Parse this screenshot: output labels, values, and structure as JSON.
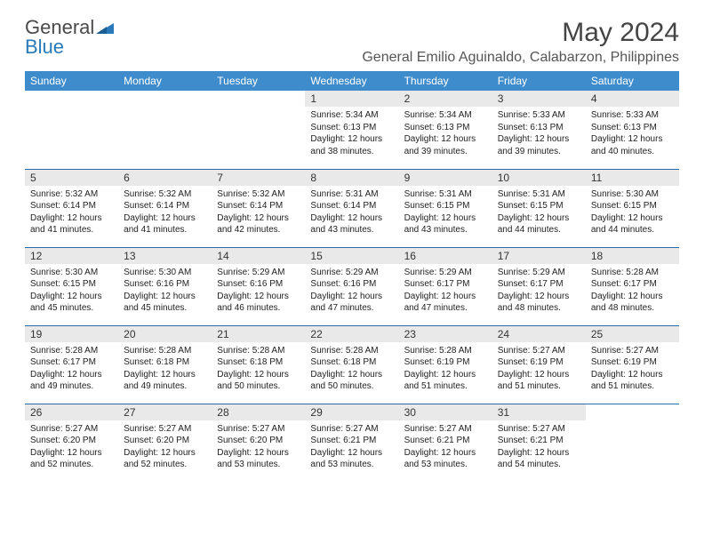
{
  "brand": {
    "part1": "General",
    "part2": "Blue"
  },
  "title": "May 2024",
  "location": "General Emilio Aguinaldo, Calabarzon, Philippines",
  "colors": {
    "header_bg": "#3e8ccc",
    "header_text": "#ffffff",
    "daynum_bg": "#e9e9e9",
    "row_border": "#2a6ca8",
    "brand_blue": "#2a7ab9",
    "brand_gray": "#4a4a4a"
  },
  "weekdays": [
    "Sunday",
    "Monday",
    "Tuesday",
    "Wednesday",
    "Thursday",
    "Friday",
    "Saturday"
  ],
  "layout": {
    "first_weekday_index": 3,
    "days_in_month": 31
  },
  "days": {
    "1": {
      "sunrise": "5:34 AM",
      "sunset": "6:13 PM",
      "daylight": "12 hours and 38 minutes."
    },
    "2": {
      "sunrise": "5:34 AM",
      "sunset": "6:13 PM",
      "daylight": "12 hours and 39 minutes."
    },
    "3": {
      "sunrise": "5:33 AM",
      "sunset": "6:13 PM",
      "daylight": "12 hours and 39 minutes."
    },
    "4": {
      "sunrise": "5:33 AM",
      "sunset": "6:13 PM",
      "daylight": "12 hours and 40 minutes."
    },
    "5": {
      "sunrise": "5:32 AM",
      "sunset": "6:14 PM",
      "daylight": "12 hours and 41 minutes."
    },
    "6": {
      "sunrise": "5:32 AM",
      "sunset": "6:14 PM",
      "daylight": "12 hours and 41 minutes."
    },
    "7": {
      "sunrise": "5:32 AM",
      "sunset": "6:14 PM",
      "daylight": "12 hours and 42 minutes."
    },
    "8": {
      "sunrise": "5:31 AM",
      "sunset": "6:14 PM",
      "daylight": "12 hours and 43 minutes."
    },
    "9": {
      "sunrise": "5:31 AM",
      "sunset": "6:15 PM",
      "daylight": "12 hours and 43 minutes."
    },
    "10": {
      "sunrise": "5:31 AM",
      "sunset": "6:15 PM",
      "daylight": "12 hours and 44 minutes."
    },
    "11": {
      "sunrise": "5:30 AM",
      "sunset": "6:15 PM",
      "daylight": "12 hours and 44 minutes."
    },
    "12": {
      "sunrise": "5:30 AM",
      "sunset": "6:15 PM",
      "daylight": "12 hours and 45 minutes."
    },
    "13": {
      "sunrise": "5:30 AM",
      "sunset": "6:16 PM",
      "daylight": "12 hours and 45 minutes."
    },
    "14": {
      "sunrise": "5:29 AM",
      "sunset": "6:16 PM",
      "daylight": "12 hours and 46 minutes."
    },
    "15": {
      "sunrise": "5:29 AM",
      "sunset": "6:16 PM",
      "daylight": "12 hours and 47 minutes."
    },
    "16": {
      "sunrise": "5:29 AM",
      "sunset": "6:17 PM",
      "daylight": "12 hours and 47 minutes."
    },
    "17": {
      "sunrise": "5:29 AM",
      "sunset": "6:17 PM",
      "daylight": "12 hours and 48 minutes."
    },
    "18": {
      "sunrise": "5:28 AM",
      "sunset": "6:17 PM",
      "daylight": "12 hours and 48 minutes."
    },
    "19": {
      "sunrise": "5:28 AM",
      "sunset": "6:17 PM",
      "daylight": "12 hours and 49 minutes."
    },
    "20": {
      "sunrise": "5:28 AM",
      "sunset": "6:18 PM",
      "daylight": "12 hours and 49 minutes."
    },
    "21": {
      "sunrise": "5:28 AM",
      "sunset": "6:18 PM",
      "daylight": "12 hours and 50 minutes."
    },
    "22": {
      "sunrise": "5:28 AM",
      "sunset": "6:18 PM",
      "daylight": "12 hours and 50 minutes."
    },
    "23": {
      "sunrise": "5:28 AM",
      "sunset": "6:19 PM",
      "daylight": "12 hours and 51 minutes."
    },
    "24": {
      "sunrise": "5:27 AM",
      "sunset": "6:19 PM",
      "daylight": "12 hours and 51 minutes."
    },
    "25": {
      "sunrise": "5:27 AM",
      "sunset": "6:19 PM",
      "daylight": "12 hours and 51 minutes."
    },
    "26": {
      "sunrise": "5:27 AM",
      "sunset": "6:20 PM",
      "daylight": "12 hours and 52 minutes."
    },
    "27": {
      "sunrise": "5:27 AM",
      "sunset": "6:20 PM",
      "daylight": "12 hours and 52 minutes."
    },
    "28": {
      "sunrise": "5:27 AM",
      "sunset": "6:20 PM",
      "daylight": "12 hours and 53 minutes."
    },
    "29": {
      "sunrise": "5:27 AM",
      "sunset": "6:21 PM",
      "daylight": "12 hours and 53 minutes."
    },
    "30": {
      "sunrise": "5:27 AM",
      "sunset": "6:21 PM",
      "daylight": "12 hours and 53 minutes."
    },
    "31": {
      "sunrise": "5:27 AM",
      "sunset": "6:21 PM",
      "daylight": "12 hours and 54 minutes."
    }
  },
  "labels": {
    "sunrise": "Sunrise:",
    "sunset": "Sunset:",
    "daylight": "Daylight:"
  }
}
